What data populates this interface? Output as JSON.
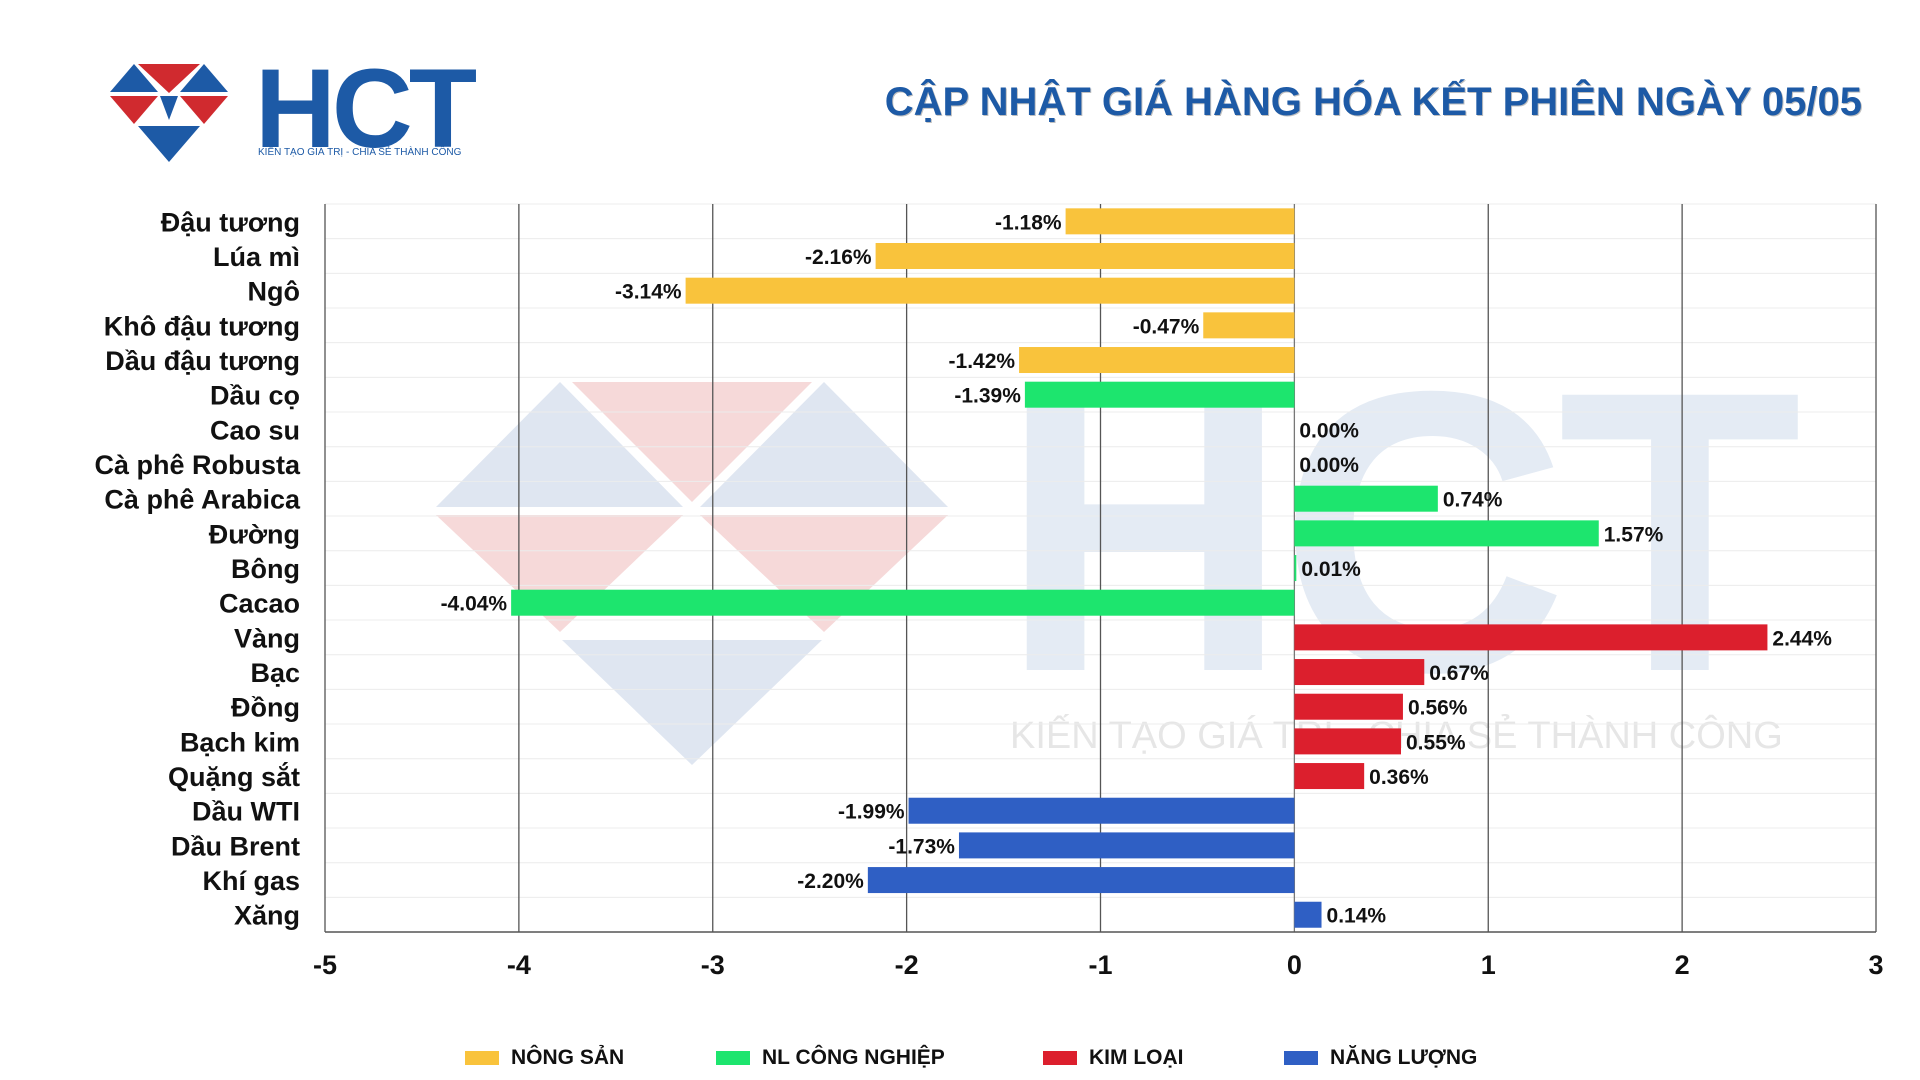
{
  "header": {
    "brand": "HCT",
    "slogan": "KIẾN TẠO GIÁ TRỊ - CHIA SẺ THÀNH CÔNG",
    "title": "CẬP NHẬT GIÁ HÀNG HÓA KẾT PHIÊN NGÀY 05/05"
  },
  "watermark": {
    "brand": "HCT",
    "slogan": "KIẾN TẠO GIÁ TRỊ - CHIA SẺ THÀNH CÔNG"
  },
  "colors": {
    "brand_blue": "#1d5aa6",
    "brand_red": "#d02a2f",
    "nong_san": "#f9c33c",
    "nl_cong_nghiep": "#1de56e",
    "kim_loai": "#dc1f2d",
    "nang_luong": "#2f5fc4"
  },
  "legend": [
    {
      "label": "NÔNG SẢN",
      "color": "#f9c33c"
    },
    {
      "label": "NL CÔNG NGHIỆP",
      "color": "#1de56e"
    },
    {
      "label": "KIM LOẠI",
      "color": "#dc1f2d"
    },
    {
      "label": "NĂNG LƯỢNG",
      "color": "#2f5fc4"
    }
  ],
  "chart_data": {
    "type": "bar",
    "orientation": "horizontal",
    "title": "CẬP NHẬT GIÁ HÀNG HÓA KẾT PHIÊN NGÀY 05/05",
    "xlim": [
      -5,
      3
    ],
    "xticks": [
      -5,
      -4,
      -3,
      -2,
      -1,
      0,
      1,
      2,
      3
    ],
    "grid": "vertical",
    "legend_position": "bottom",
    "categories": [
      "Đậu tương",
      "Lúa mì",
      "Ngô",
      "Khô đậu tương",
      "Dầu đậu tương",
      "Dầu cọ",
      "Cao su",
      "Cà phê Robusta",
      "Cà phê Arabica",
      "Đường",
      "Bông",
      "Cacao",
      "Vàng",
      "Bạc",
      "Đồng",
      "Bạch kim",
      "Quặng sắt",
      "Dầu WTI",
      "Dầu Brent",
      "Khí gas",
      "Xăng"
    ],
    "values": [
      -1.18,
      -2.16,
      -3.14,
      -0.47,
      -1.42,
      -1.39,
      0.0,
      0.0,
      0.74,
      1.57,
      0.01,
      -4.04,
      2.44,
      0.67,
      0.56,
      0.55,
      0.36,
      -1.99,
      -1.73,
      -2.2,
      0.14
    ],
    "labels": [
      "-1.18%",
      "-2.16%",
      "-3.14%",
      "-0.47%",
      "-1.42%",
      "-1.39%",
      "0.00%",
      "0.00%",
      "0.74%",
      "1.57%",
      "0.01%",
      "-4.04%",
      "2.44%",
      "0.67%",
      "0.56%",
      "0.55%",
      "0.36%",
      "-1.99%",
      "-1.73%",
      "-2.20%",
      "0.14%"
    ],
    "groups": [
      "NÔNG SẢN",
      "NÔNG SẢN",
      "NÔNG SẢN",
      "NÔNG SẢN",
      "NÔNG SẢN",
      "NL CÔNG NGHIỆP",
      "NL CÔNG NGHIỆP",
      "NL CÔNG NGHIỆP",
      "NL CÔNG NGHIỆP",
      "NL CÔNG NGHIỆP",
      "NL CÔNG NGHIỆP",
      "NL CÔNG NGHIỆP",
      "KIM LOẠI",
      "KIM LOẠI",
      "KIM LOẠI",
      "KIM LOẠI",
      "KIM LOẠI",
      "NĂNG LƯỢNG",
      "NĂNG LƯỢNG",
      "NĂNG LƯỢNG",
      "NĂNG LƯỢNG"
    ],
    "bar_colors": [
      "#f9c33c",
      "#f9c33c",
      "#f9c33c",
      "#f9c33c",
      "#f9c33c",
      "#1de56e",
      "#1de56e",
      "#1de56e",
      "#1de56e",
      "#1de56e",
      "#1de56e",
      "#1de56e",
      "#dc1f2d",
      "#dc1f2d",
      "#dc1f2d",
      "#dc1f2d",
      "#dc1f2d",
      "#2f5fc4",
      "#2f5fc4",
      "#2f5fc4",
      "#2f5fc4"
    ]
  }
}
